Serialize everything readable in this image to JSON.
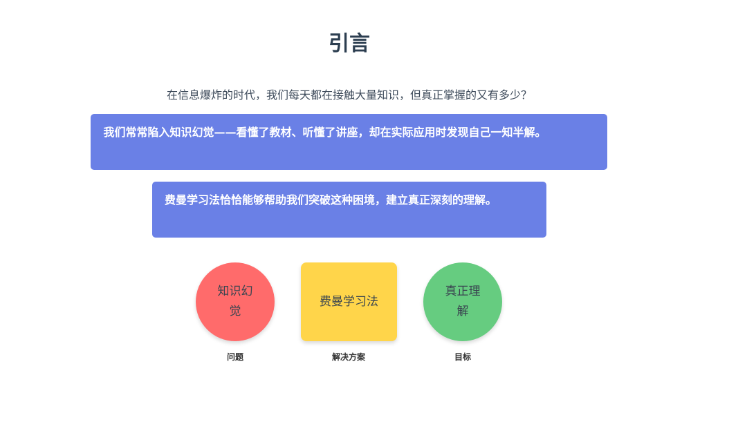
{
  "title": "引言",
  "intro": "在信息爆炸的时代，我们每天都在接触大量知识，但真正掌握的又有多少？",
  "callouts": [
    "我们常常陷入知识幻觉——看懂了教材、听懂了讲座，却在实际应用时发现自己一知半解。",
    "费曼学习法恰恰能够帮助我们突破这种困境，建立真正深刻的理解。"
  ],
  "flow": [
    {
      "text": "知识幻觉",
      "label": "问题",
      "color": "#ff6b6b"
    },
    {
      "text": "费曼学习法",
      "label": "解决方案",
      "color": "#ffd54a"
    },
    {
      "text": "真正理解",
      "label": "目标",
      "color": "#66cc80"
    }
  ],
  "colors": {
    "callout": "#6a80e6",
    "title": "#2c3e50"
  }
}
